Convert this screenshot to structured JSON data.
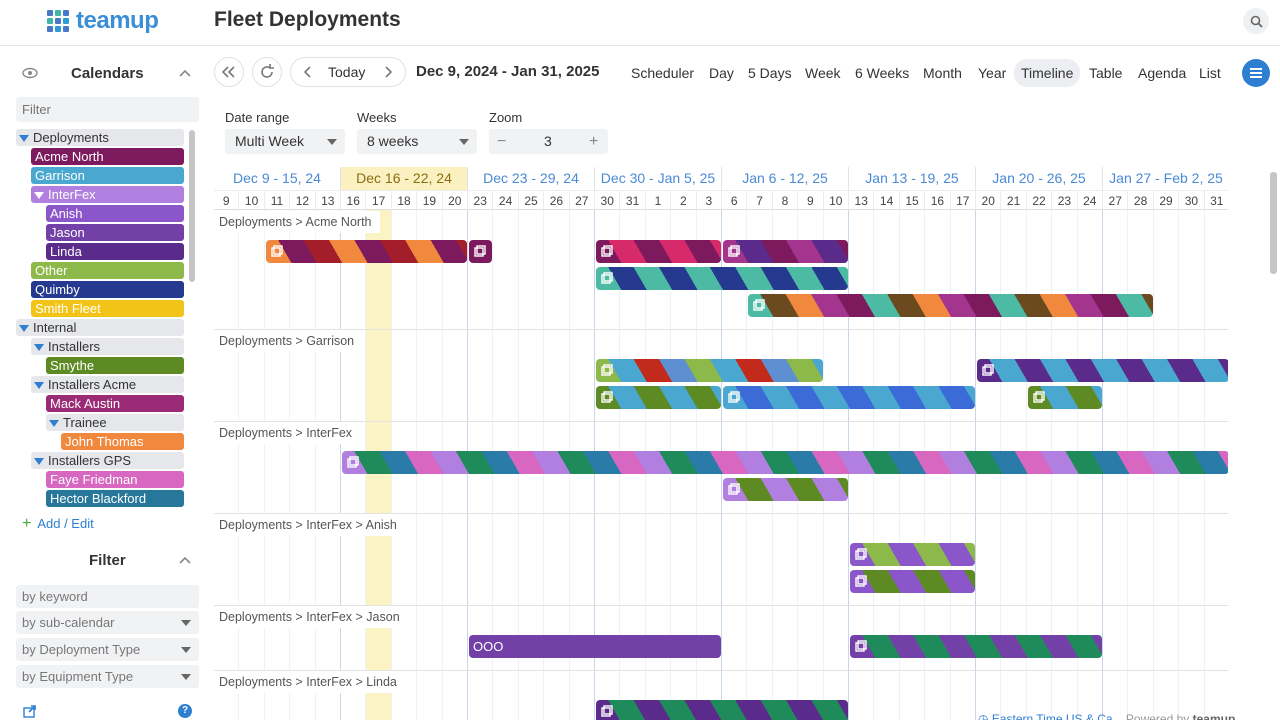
{
  "app": {
    "logo": "teamup",
    "title": "Fleet Deployments"
  },
  "sidebar": {
    "calendars_title": "Calendars",
    "filter_placeholder": "Filter",
    "add_edit": "Add / Edit",
    "filter_title": "Filter",
    "filters": [
      "by keyword",
      "by sub-calendar",
      "by Deployment Type",
      "by Equipment Type"
    ],
    "calendars": [
      {
        "label": "Deployments",
        "group": true,
        "level": 0,
        "color": ""
      },
      {
        "label": "Acme North",
        "group": false,
        "level": 1,
        "color": "#7d1a5e"
      },
      {
        "label": "Garrison",
        "group": false,
        "level": 1,
        "color": "#4aa7d0"
      },
      {
        "label": "InterFex",
        "group": true,
        "level": 1,
        "color": "#b07fe0"
      },
      {
        "label": "Anish",
        "group": false,
        "level": 2,
        "color": "#8a56c9"
      },
      {
        "label": "Jason",
        "group": false,
        "level": 2,
        "color": "#7340a8"
      },
      {
        "label": "Linda",
        "group": false,
        "level": 2,
        "color": "#5a2b8a"
      },
      {
        "label": "Other",
        "group": false,
        "level": 1,
        "color": "#8db84a"
      },
      {
        "label": "Quimby",
        "group": false,
        "level": 1,
        "color": "#253a8f"
      },
      {
        "label": "Smith Fleet",
        "group": false,
        "level": 1,
        "color": "#f2c418"
      },
      {
        "label": "Internal",
        "group": true,
        "level": 0,
        "color": ""
      },
      {
        "label": "Installers",
        "group": true,
        "level": 1,
        "color": ""
      },
      {
        "label": "Smythe",
        "group": false,
        "level": 2,
        "color": "#5e8a24"
      },
      {
        "label": "Installers Acme",
        "group": true,
        "level": 1,
        "color": ""
      },
      {
        "label": "Mack Austin",
        "group": false,
        "level": 2,
        "color": "#9b2a77"
      },
      {
        "label": "Trainee",
        "group": true,
        "level": 2,
        "color": ""
      },
      {
        "label": "John Thomas",
        "group": false,
        "level": 3,
        "color": "#f0883e"
      },
      {
        "label": "Installers GPS",
        "group": true,
        "level": 1,
        "color": ""
      },
      {
        "label": "Faye Friedman",
        "group": false,
        "level": 2,
        "color": "#d767c0"
      },
      {
        "label": "Hector Blackford",
        "group": false,
        "level": 2,
        "color": "#27779a"
      }
    ]
  },
  "toolbar": {
    "today": "Today",
    "date_range": "Dec 9, 2024 - Jan 31, 2025",
    "views": [
      "Scheduler",
      "Day",
      "5 Days",
      "Week",
      "6 Weeks",
      "Month",
      "Year",
      "Timeline",
      "Table",
      "Agenda",
      "List"
    ],
    "active_view": "Timeline"
  },
  "options": {
    "date_range_label": "Date range",
    "date_range_value": "Multi Week",
    "weeks_label": "Weeks",
    "weeks_value": "8 weeks",
    "zoom_label": "Zoom",
    "zoom_value": "3"
  },
  "timeline": {
    "weeks": [
      "Dec 9 - 15, 24",
      "Dec 16 - 22, 24",
      "Dec 23 - 29, 24",
      "Dec 30 - Jan 5, 25",
      "Jan 6 - 12, 25",
      "Jan 13 - 19, 25",
      "Jan 20 - 26, 25",
      "Jan 27 - Feb 2, 25"
    ],
    "current_week": 1,
    "days": [
      "9",
      "10",
      "11",
      "12",
      "13",
      "16",
      "17",
      "18",
      "19",
      "20",
      "23",
      "24",
      "25",
      "26",
      "27",
      "30",
      "31",
      "1",
      "2",
      "3",
      "6",
      "7",
      "8",
      "9",
      "10",
      "13",
      "14",
      "15",
      "16",
      "17",
      "20",
      "21",
      "22",
      "23",
      "24",
      "27",
      "28",
      "29",
      "30",
      "31"
    ],
    "today_index": 6,
    "sections": [
      {
        "label": "Deployments > Acme North",
        "bars": [
          {
            "start": 2,
            "end": 10,
            "row": 0,
            "colors": [
              "#f0883e",
              "#7d1a5e",
              "#a31e2a"
            ]
          },
          {
            "start": 10,
            "end": 11,
            "row": 0,
            "colors": [
              "#7d1a5e"
            ]
          },
          {
            "start": 15,
            "end": 20,
            "row": 0,
            "colors": [
              "#7d1a5e",
              "#d62a6a"
            ]
          },
          {
            "start": 20,
            "end": 25,
            "row": 0,
            "colors": [
              "#a3358e",
              "#5a2b8a",
              "#7d1a5e"
            ]
          },
          {
            "start": 15,
            "end": 25,
            "row": 1,
            "colors": [
              "#4dbba4",
              "#253a8f"
            ]
          },
          {
            "start": 21,
            "end": 37,
            "row": 2,
            "colors": [
              "#4dbba4",
              "#6b4a20",
              "#f0883e",
              "#a3358e",
              "#7d1a5e"
            ]
          }
        ]
      },
      {
        "label": "Deployments > Garrison",
        "bars": [
          {
            "start": 15,
            "end": 24,
            "row": 0,
            "colors": [
              "#8db84a",
              "#4aa7d0",
              "#c22a1c",
              "#5e8fd0"
            ]
          },
          {
            "start": 30,
            "end": 40,
            "row": 0,
            "colors": [
              "#5a2b8a",
              "#4aa7d0"
            ]
          },
          {
            "start": 15,
            "end": 20,
            "row": 1,
            "colors": [
              "#5e8a24",
              "#4aa7d0"
            ]
          },
          {
            "start": 20,
            "end": 30,
            "row": 1,
            "colors": [
              "#4aa7d0",
              "#3a6bd6"
            ]
          },
          {
            "start": 32,
            "end": 35,
            "row": 1,
            "colors": [
              "#5e8a24",
              "#4aa7d0"
            ]
          }
        ]
      },
      {
        "label": "Deployments > InterFex",
        "bars": [
          {
            "start": 5,
            "end": 40,
            "row": 0,
            "colors": [
              "#b07fe0",
              "#1f8a5a",
              "#2a7ba8",
              "#d767c0"
            ]
          },
          {
            "start": 20,
            "end": 25,
            "row": 1,
            "colors": [
              "#b07fe0",
              "#5e8a24"
            ]
          }
        ]
      },
      {
        "label": "Deployments > InterFex > Anish",
        "bars": [
          {
            "start": 25,
            "end": 30,
            "row": 0,
            "colors": [
              "#8a56c9",
              "#8db84a"
            ]
          },
          {
            "start": 25,
            "end": 30,
            "row": 1,
            "colors": [
              "#8a56c9",
              "#5e8a24"
            ]
          }
        ]
      },
      {
        "label": "Deployments > InterFex > Jason",
        "bars": [
          {
            "start": 10,
            "end": 20,
            "row": 0,
            "colors": [
              "#7340a8"
            ],
            "text": "OOO"
          },
          {
            "start": 25,
            "end": 35,
            "row": 0,
            "colors": [
              "#7340a8",
              "#1f8a5a"
            ]
          }
        ]
      },
      {
        "label": "Deployments > InterFex > Linda",
        "bars": [
          {
            "start": 15,
            "end": 25,
            "row": 0,
            "colors": [
              "#5a2b8a",
              "#1f8a5a"
            ]
          }
        ]
      }
    ]
  },
  "footer": {
    "timezone": "Eastern Time US & Ca",
    "powered": "Powered by",
    "brand": "teamup"
  }
}
